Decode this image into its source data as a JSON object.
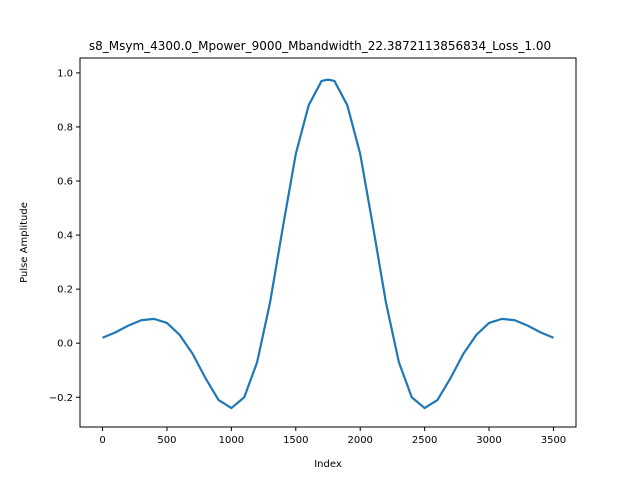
{
  "chart_data": {
    "type": "line",
    "title": "s8_Msym_4300.0_Mpower_9000_Mbandwidth_22.3872113856834_Loss_1.00",
    "xlabel": "Index",
    "ylabel": "Pulse Amplitude",
    "xlim": [
      -175,
      3675
    ],
    "ylim": [
      -0.31,
      1.055
    ],
    "xticks": [
      0,
      500,
      1000,
      1500,
      2000,
      2500,
      3000,
      3500
    ],
    "xtick_labels": [
      "0",
      "500",
      "1000",
      "1500",
      "2000",
      "2500",
      "3000",
      "3500"
    ],
    "yticks": [
      -0.2,
      0.0,
      0.2,
      0.4,
      0.6,
      0.8,
      1.0
    ],
    "ytick_labels": [
      "−0.2",
      "0.0",
      "0.2",
      "0.4",
      "0.6",
      "0.8",
      "1.0"
    ],
    "grid": false,
    "series": [
      {
        "color": "#1f77b4",
        "x": [
          0,
          100,
          200,
          300,
          400,
          500,
          600,
          700,
          800,
          900,
          1000,
          1100,
          1200,
          1300,
          1400,
          1500,
          1600,
          1700,
          1750,
          1800,
          1900,
          2000,
          2100,
          2200,
          2300,
          2400,
          2500,
          2600,
          2700,
          2800,
          2900,
          3000,
          3100,
          3200,
          3300,
          3400,
          3500
        ],
        "y": [
          0.02,
          0.04,
          0.065,
          0.085,
          0.09,
          0.075,
          0.03,
          -0.04,
          -0.13,
          -0.21,
          -0.24,
          -0.2,
          -0.07,
          0.15,
          0.43,
          0.7,
          0.88,
          0.97,
          0.975,
          0.97,
          0.88,
          0.7,
          0.43,
          0.15,
          -0.07,
          -0.2,
          -0.24,
          -0.21,
          -0.13,
          -0.04,
          0.03,
          0.075,
          0.09,
          0.085,
          0.065,
          0.04,
          0.02
        ]
      }
    ]
  }
}
